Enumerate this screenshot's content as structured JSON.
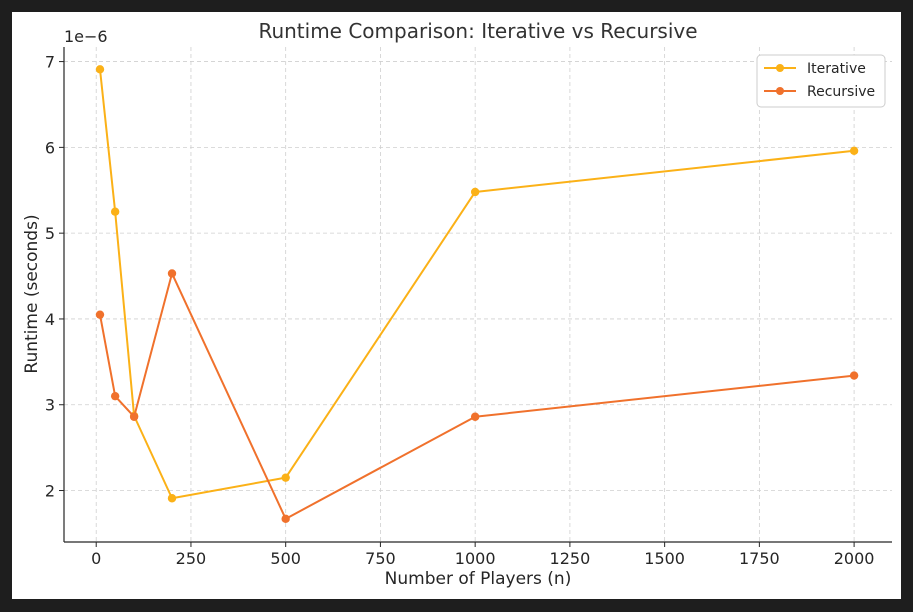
{
  "chart_data": {
    "type": "line",
    "title": "Runtime Comparison: Iterative vs Recursive",
    "xlabel": "Number of Players (n)",
    "ylabel": "Runtime (seconds)",
    "y_offset_label": "1e−6",
    "xlim": [
      -85,
      2100
    ],
    "ylim": [
      1.4,
      7.17
    ],
    "x_ticks": [
      0,
      250,
      500,
      750,
      1000,
      1250,
      1500,
      1750,
      2000
    ],
    "y_ticks": [
      2,
      3,
      4,
      5,
      6,
      7
    ],
    "grid": true,
    "legend_position": "top-right",
    "x": [
      10,
      50,
      100,
      200,
      500,
      1000,
      2000
    ],
    "series": [
      {
        "name": "Iterative",
        "color": "#fbb117",
        "values": [
          6.91,
          5.25,
          2.87,
          1.91,
          2.15,
          5.48,
          5.96
        ]
      },
      {
        "name": "Recursive",
        "color": "#f0712c",
        "values": [
          4.05,
          3.1,
          2.86,
          4.53,
          1.67,
          2.86,
          3.34
        ]
      }
    ]
  }
}
